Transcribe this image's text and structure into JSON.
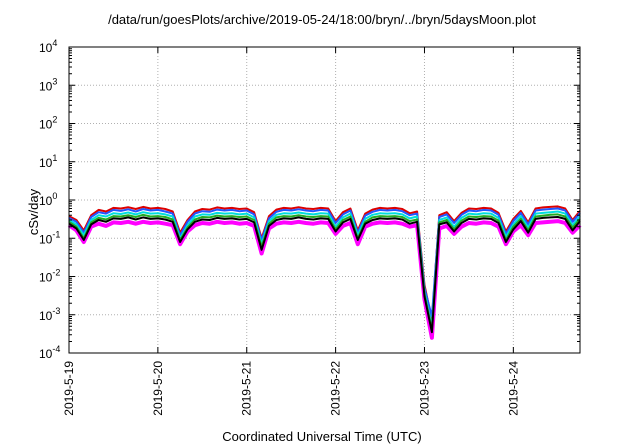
{
  "chart_data": {
    "type": "line",
    "title": "/data/run/goesPlots/archive/2019-05-24/18:00/bryn/../bryn/5daysMoon.plot",
    "xlabel": "Coordinated Universal Time (UTC)",
    "ylabel": "cSv/day",
    "yscale": "log",
    "ylim": [
      0.0001,
      10000
    ],
    "y_ticks": [
      {
        "value": 0.0001,
        "base": "10",
        "exp": "-4"
      },
      {
        "value": 0.001,
        "base": "10",
        "exp": "-3"
      },
      {
        "value": 0.01,
        "base": "10",
        "exp": "-2"
      },
      {
        "value": 0.1,
        "base": "10",
        "exp": "-1"
      },
      {
        "value": 1,
        "base": "10",
        "exp": "0"
      },
      {
        "value": 10,
        "base": "10",
        "exp": "1"
      },
      {
        "value": 100,
        "base": "10",
        "exp": "2"
      },
      {
        "value": 1000,
        "base": "10",
        "exp": "3"
      },
      {
        "value": 10000,
        "base": "10",
        "exp": "4"
      }
    ],
    "x_ticks": [
      "2019-5-19",
      "2019-5-20",
      "2019-5-21",
      "2019-5-22",
      "2019-5-23",
      "2019-5-24"
    ],
    "x_tick_days": [
      0,
      1,
      2,
      3,
      4,
      5
    ],
    "xlim_days": [
      0,
      5.75
    ],
    "grid": true,
    "series": [
      {
        "color": "#ff00ff",
        "scale": 0.55,
        "values": [
          0.22,
          0.16,
          0.08,
          0.2,
          0.24,
          0.21,
          0.26,
          0.25,
          0.27,
          0.24,
          0.27,
          0.25,
          0.26,
          0.24,
          0.22,
          0.07,
          0.15,
          0.22,
          0.25,
          0.24,
          0.27,
          0.25,
          0.26,
          0.24,
          0.25,
          0.21,
          0.04,
          0.18,
          0.24,
          0.26,
          0.25,
          0.27,
          0.25,
          0.24,
          0.26,
          0.25,
          0.13,
          0.21,
          0.25,
          0.07,
          0.2,
          0.24,
          0.26,
          0.25,
          0.26,
          0.24,
          0.2,
          0.22,
          0.0025,
          0.00025,
          0.18,
          0.21,
          0.13,
          0.2,
          0.25,
          0.24,
          0.26,
          0.25,
          0.2,
          0.07,
          0.15,
          0.22,
          0.12,
          0.25,
          0.26,
          0.27,
          0.28,
          0.25,
          0.14,
          0.22
        ]
      },
      {
        "color": "#dd0000",
        "scale": 1.0,
        "values": [
          0.38,
          0.3,
          0.16,
          0.4,
          0.55,
          0.5,
          0.62,
          0.6,
          0.65,
          0.58,
          0.66,
          0.6,
          0.62,
          0.58,
          0.5,
          0.14,
          0.3,
          0.5,
          0.58,
          0.56,
          0.64,
          0.6,
          0.62,
          0.58,
          0.6,
          0.48,
          0.1,
          0.38,
          0.56,
          0.62,
          0.6,
          0.65,
          0.6,
          0.58,
          0.62,
          0.6,
          0.28,
          0.48,
          0.6,
          0.16,
          0.44,
          0.56,
          0.62,
          0.6,
          0.62,
          0.58,
          0.45,
          0.5,
          0.006,
          0.0007,
          0.4,
          0.48,
          0.28,
          0.46,
          0.6,
          0.58,
          0.62,
          0.6,
          0.46,
          0.15,
          0.32,
          0.52,
          0.26,
          0.6,
          0.64,
          0.66,
          0.68,
          0.6,
          0.3,
          0.52
        ]
      },
      {
        "color": "#2255ff",
        "scale": 0.85,
        "values": [
          0.34,
          0.27,
          0.14,
          0.36,
          0.48,
          0.44,
          0.55,
          0.52,
          0.57,
          0.5,
          0.58,
          0.53,
          0.55,
          0.5,
          0.44,
          0.12,
          0.27,
          0.44,
          0.51,
          0.49,
          0.56,
          0.53,
          0.55,
          0.51,
          0.53,
          0.42,
          0.09,
          0.33,
          0.49,
          0.55,
          0.53,
          0.57,
          0.53,
          0.51,
          0.55,
          0.53,
          0.25,
          0.42,
          0.53,
          0.14,
          0.39,
          0.49,
          0.55,
          0.53,
          0.55,
          0.51,
          0.4,
          0.44,
          0.005,
          0.0009,
          0.36,
          0.42,
          0.25,
          0.41,
          0.53,
          0.51,
          0.55,
          0.53,
          0.41,
          0.13,
          0.28,
          0.46,
          0.23,
          0.53,
          0.56,
          0.58,
          0.6,
          0.53,
          0.27,
          0.46
        ]
      },
      {
        "color": "#00dddd",
        "scale": 0.7,
        "values": [
          0.3,
          0.23,
          0.12,
          0.3,
          0.4,
          0.37,
          0.45,
          0.43,
          0.47,
          0.42,
          0.48,
          0.44,
          0.45,
          0.42,
          0.37,
          0.1,
          0.22,
          0.37,
          0.42,
          0.41,
          0.46,
          0.44,
          0.45,
          0.42,
          0.44,
          0.35,
          0.07,
          0.28,
          0.41,
          0.45,
          0.44,
          0.47,
          0.44,
          0.42,
          0.45,
          0.44,
          0.2,
          0.35,
          0.44,
          0.12,
          0.32,
          0.41,
          0.45,
          0.44,
          0.45,
          0.42,
          0.33,
          0.37,
          0.004,
          0.0005,
          0.3,
          0.35,
          0.2,
          0.34,
          0.44,
          0.42,
          0.45,
          0.44,
          0.34,
          0.11,
          0.23,
          0.38,
          0.19,
          0.44,
          0.46,
          0.48,
          0.5,
          0.44,
          0.22,
          0.38
        ]
      },
      {
        "color": "#22aa22",
        "scale": 0.6,
        "values": [
          0.27,
          0.2,
          0.1,
          0.26,
          0.34,
          0.31,
          0.38,
          0.37,
          0.4,
          0.36,
          0.41,
          0.37,
          0.38,
          0.36,
          0.31,
          0.09,
          0.19,
          0.31,
          0.36,
          0.35,
          0.39,
          0.37,
          0.38,
          0.36,
          0.37,
          0.3,
          0.06,
          0.24,
          0.35,
          0.38,
          0.37,
          0.4,
          0.37,
          0.36,
          0.38,
          0.37,
          0.17,
          0.3,
          0.37,
          0.1,
          0.27,
          0.35,
          0.38,
          0.37,
          0.38,
          0.36,
          0.28,
          0.31,
          0.0035,
          0.0004,
          0.26,
          0.3,
          0.17,
          0.29,
          0.37,
          0.36,
          0.38,
          0.37,
          0.29,
          0.09,
          0.2,
          0.32,
          0.16,
          0.37,
          0.39,
          0.41,
          0.42,
          0.37,
          0.19,
          0.32
        ]
      },
      {
        "color": "#000000",
        "scale": 0.5,
        "values": [
          0.24,
          0.18,
          0.09,
          0.23,
          0.3,
          0.27,
          0.33,
          0.32,
          0.35,
          0.31,
          0.35,
          0.32,
          0.33,
          0.31,
          0.27,
          0.08,
          0.17,
          0.27,
          0.31,
          0.3,
          0.34,
          0.32,
          0.33,
          0.31,
          0.32,
          0.26,
          0.05,
          0.21,
          0.3,
          0.33,
          0.32,
          0.35,
          0.32,
          0.31,
          0.33,
          0.32,
          0.15,
          0.26,
          0.32,
          0.09,
          0.24,
          0.3,
          0.33,
          0.32,
          0.33,
          0.31,
          0.24,
          0.27,
          0.003,
          0.00035,
          0.23,
          0.26,
          0.15,
          0.25,
          0.32,
          0.31,
          0.33,
          0.32,
          0.25,
          0.08,
          0.17,
          0.28,
          0.14,
          0.32,
          0.34,
          0.35,
          0.36,
          0.32,
          0.16,
          0.28
        ]
      }
    ]
  }
}
